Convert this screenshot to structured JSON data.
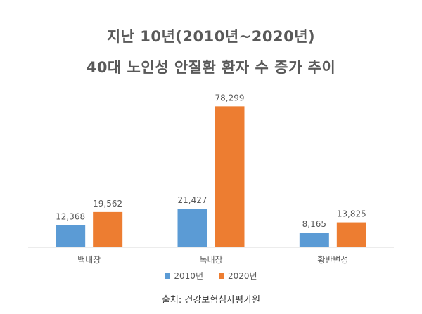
{
  "chart_data": {
    "type": "bar",
    "title_lines": [
      "지난 10년(2010년~2020년)",
      "40대 노인성 안질환 환자 수 증가 추이"
    ],
    "categories": [
      "백내장",
      "녹내장",
      "황반변성"
    ],
    "series": [
      {
        "name": "2010년",
        "values": [
          12368,
          21427,
          8165
        ],
        "labels": [
          "12,368",
          "21,427",
          "8,165"
        ],
        "color": "#5B9BD5"
      },
      {
        "name": "2020년",
        "values": [
          19562,
          78299,
          13825
        ],
        "labels": [
          "19,562",
          "78,299",
          "13,825"
        ],
        "color": "#ED7D31"
      }
    ],
    "ylim": [
      0,
      80000
    ],
    "grid": false,
    "legend_position": "bottom",
    "source": "출처: 건강보험심사평가원"
  }
}
